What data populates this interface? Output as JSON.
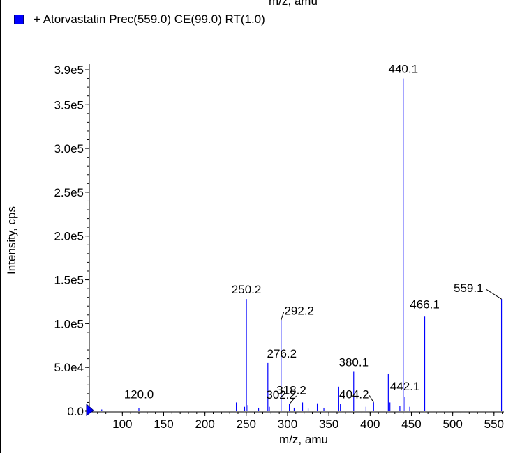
{
  "chart_data": {
    "type": "bar",
    "legend": {
      "label": "+ Atorvastatin Prec(559.0) CE(99.0) RT(1.0)",
      "color": "#0000ff"
    },
    "top_xlabel": "m/z, amu",
    "xlabel": "m/z, amu",
    "ylabel": "Intensity, cps",
    "xlim": [
      60,
      562
    ],
    "ylim": [
      0,
      390000
    ],
    "x_ticks": [
      {
        "value": 100,
        "label": "100"
      },
      {
        "value": 150,
        "label": "150"
      },
      {
        "value": 200,
        "label": "200"
      },
      {
        "value": 250,
        "label": "250"
      },
      {
        "value": 300,
        "label": "300"
      },
      {
        "value": 350,
        "label": "350"
      },
      {
        "value": 400,
        "label": "400"
      },
      {
        "value": 450,
        "label": "450"
      },
      {
        "value": 500,
        "label": "500"
      },
      {
        "value": 550,
        "label": "550"
      }
    ],
    "y_ticks": [
      {
        "value": 0,
        "label": "0.0"
      },
      {
        "value": 50000,
        "label": "5.0e4"
      },
      {
        "value": 100000,
        "label": "1.0e5"
      },
      {
        "value": 150000,
        "label": "1.5e5"
      },
      {
        "value": 200000,
        "label": "2.0e5"
      },
      {
        "value": 250000,
        "label": "2.5e5"
      },
      {
        "value": 300000,
        "label": "3.0e5"
      },
      {
        "value": 350000,
        "label": "3.5e5"
      },
      {
        "value": 390000,
        "label": "3.9e5"
      }
    ],
    "peaks": [
      {
        "x": 75,
        "y": 2000
      },
      {
        "x": 120,
        "y": 3500
      },
      {
        "x": 238,
        "y": 10000
      },
      {
        "x": 248,
        "y": 5000
      },
      {
        "x": 250.2,
        "y": 128000
      },
      {
        "x": 252,
        "y": 7000
      },
      {
        "x": 265,
        "y": 4000
      },
      {
        "x": 276.2,
        "y": 55000
      },
      {
        "x": 278,
        "y": 5000
      },
      {
        "x": 292.2,
        "y": 104000
      },
      {
        "x": 302.2,
        "y": 8000
      },
      {
        "x": 308,
        "y": 4000
      },
      {
        "x": 318.2,
        "y": 10000
      },
      {
        "x": 325,
        "y": 3000
      },
      {
        "x": 336,
        "y": 9000
      },
      {
        "x": 344,
        "y": 4000
      },
      {
        "x": 362,
        "y": 28000
      },
      {
        "x": 364,
        "y": 8000
      },
      {
        "x": 380.1,
        "y": 45000
      },
      {
        "x": 395,
        "y": 5000
      },
      {
        "x": 404.2,
        "y": 10000
      },
      {
        "x": 422,
        "y": 43000
      },
      {
        "x": 424,
        "y": 10000
      },
      {
        "x": 436,
        "y": 6000
      },
      {
        "x": 440.1,
        "y": 380000
      },
      {
        "x": 442.1,
        "y": 16000
      },
      {
        "x": 448,
        "y": 5000
      },
      {
        "x": 466.1,
        "y": 108000
      },
      {
        "x": 559.1,
        "y": 128000
      }
    ],
    "annotations": [
      {
        "label": "120.0",
        "x": 120.0
      },
      {
        "label": "250.2",
        "x": 250.2
      },
      {
        "label": "276.2",
        "x": 276.2
      },
      {
        "label": "292.2",
        "x": 292.2
      },
      {
        "label": "302.2",
        "x": 302.2
      },
      {
        "label": "318.2",
        "x": 318.2
      },
      {
        "label": "380.1",
        "x": 380.1
      },
      {
        "label": "404.2",
        "x": 404.2
      },
      {
        "label": "440.1",
        "x": 440.1
      },
      {
        "label": "442.1",
        "x": 442.1
      },
      {
        "label": "466.1",
        "x": 466.1
      },
      {
        "label": "559.1",
        "x": 559.1
      }
    ],
    "grid": false
  }
}
